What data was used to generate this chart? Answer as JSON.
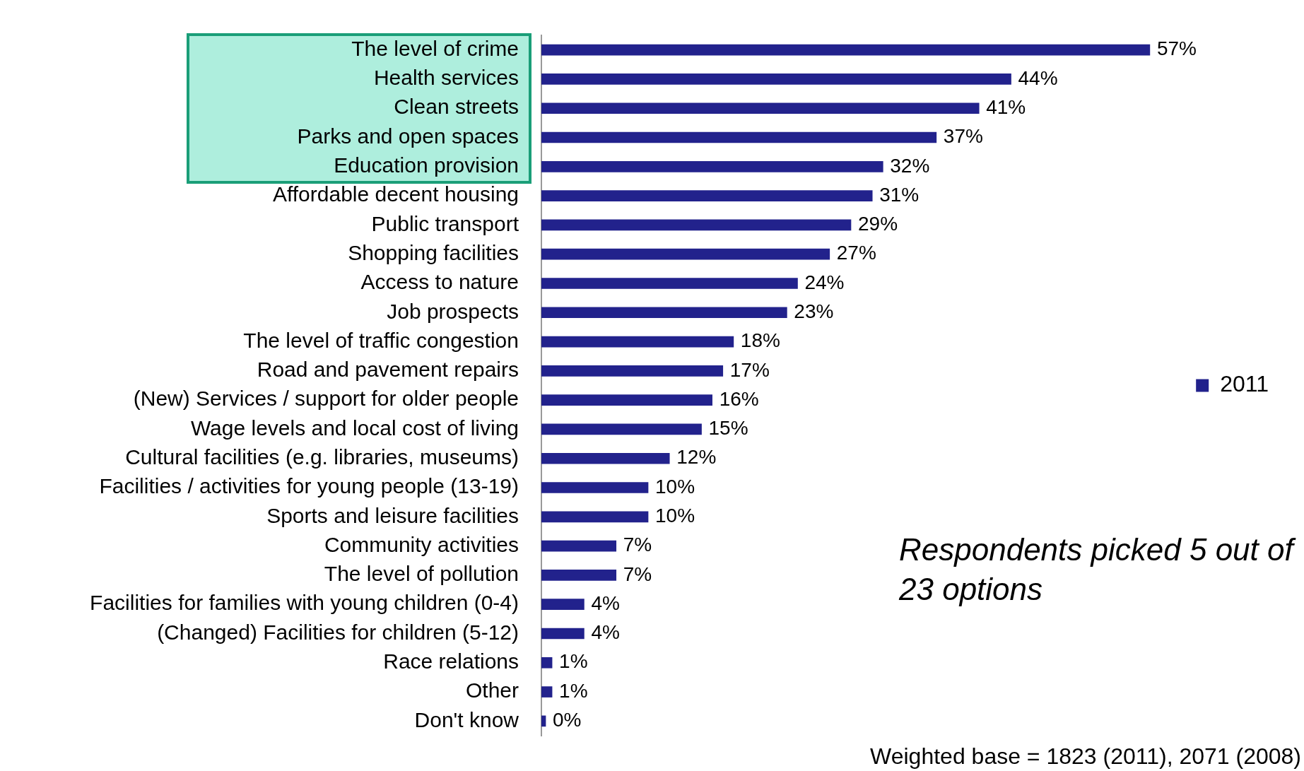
{
  "chart_data": {
    "type": "bar",
    "orientation": "horizontal",
    "categories": [
      "The level of crime",
      "Health services",
      "Clean streets",
      "Parks and open spaces",
      "Education provision",
      "Affordable decent housing",
      "Public transport",
      "Shopping facilities",
      "Access to nature",
      "Job prospects",
      "The level of traffic congestion",
      "Road and pavement repairs",
      "(New) Services / support for older people",
      "Wage levels and local cost of living",
      "Cultural facilities (e.g. libraries, museums)",
      "Facilities / activities for young people (13-19)",
      "Sports and leisure facilities",
      "Community activities",
      "The level of pollution",
      "Facilities for families with young children (0-4)",
      "(Changed) Facilities for children (5-12)",
      "Race relations",
      "Other",
      "Don't know"
    ],
    "series": [
      {
        "name": "2011",
        "color": "#22228c",
        "values": [
          57,
          44,
          41,
          37,
          32,
          31,
          29,
          27,
          24,
          23,
          18,
          17,
          16,
          15,
          12,
          10,
          10,
          7,
          7,
          4,
          4,
          1,
          1,
          0.4
        ],
        "value_labels": [
          "57%",
          "44%",
          "41%",
          "37%",
          "32%",
          "31%",
          "29%",
          "27%",
          "24%",
          "23%",
          "18%",
          "17%",
          "16%",
          "15%",
          "12%",
          "10%",
          "10%",
          "7%",
          "7%",
          "4%",
          "4%",
          "1%",
          "1%",
          "0%"
        ]
      }
    ],
    "legend": "right",
    "grid": false,
    "annotations": [
      "Respondents picked 5 out of 23 options",
      "Weighted base = 1823 (2011), 2071 (2008)"
    ]
  }
}
